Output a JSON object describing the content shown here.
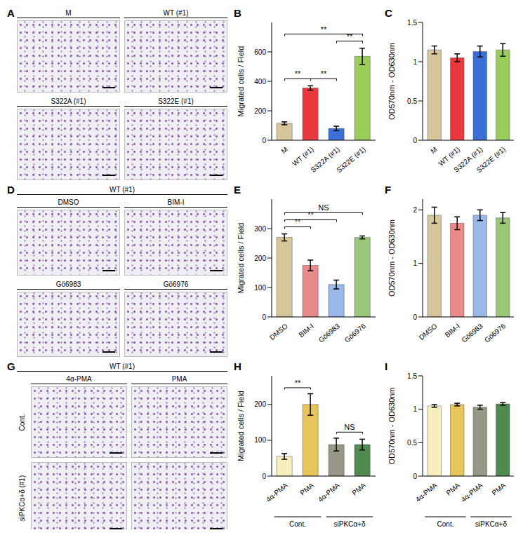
{
  "image_panels": [
    {
      "panel": "A",
      "tiles": [
        "M",
        "WT (#1)",
        "S322A (#1)",
        "S322E (#1)"
      ]
    },
    {
      "panel": "D",
      "header": "WT (#1)",
      "tiles": [
        "DMSO",
        "BIM-I",
        "Gö6983",
        "Gö6976"
      ]
    },
    {
      "panel": "G",
      "header": "WT (#1)",
      "columns": [
        "4α-PMA",
        "PMA"
      ],
      "rows": [
        "Cont.",
        "siPKCα+δ (#1)"
      ]
    }
  ],
  "chart_data": [
    {
      "panel": "B",
      "type": "bar",
      "ylabel": "Migrated cells / Field",
      "categories": [
        "M",
        "WT (#1)",
        "S322A (#1)",
        "S322E (#1)"
      ],
      "values": [
        115,
        355,
        80,
        570
      ],
      "errors": [
        10,
        15,
        15,
        55
      ],
      "colors": [
        "#d6c69a",
        "#e8383d",
        "#3a6fd8",
        "#9acd5a"
      ],
      "ylim": [
        0,
        800
      ],
      "yticks": [
        0,
        200,
        400,
        600
      ],
      "annotations": [
        {
          "from": 0,
          "to": 1,
          "label": "**"
        },
        {
          "from": 1,
          "to": 2,
          "label": "**"
        },
        {
          "from": 2,
          "to": 3,
          "label": "**"
        },
        {
          "from": 0,
          "to": 3,
          "label": "**"
        }
      ]
    },
    {
      "panel": "C",
      "type": "bar",
      "ylabel": "OD570nm - OD630nm",
      "categories": [
        "M",
        "WT (#1)",
        "S322A (#1)",
        "S322E (#1)"
      ],
      "values": [
        1.15,
        1.05,
        1.13,
        1.15
      ],
      "errors": [
        0.05,
        0.05,
        0.07,
        0.08
      ],
      "colors": [
        "#d6c69a",
        "#e8383d",
        "#3a6fd8",
        "#9acd5a"
      ],
      "ylim": [
        0,
        1.5
      ],
      "yticks": [
        0,
        0.5,
        1,
        1.5
      ]
    },
    {
      "panel": "E",
      "type": "bar",
      "ylabel": "Migrated cells / Field",
      "categories": [
        "DMSO",
        "BIM-I",
        "Gö6983",
        "Gö6976"
      ],
      "values": [
        270,
        175,
        110,
        270
      ],
      "errors": [
        12,
        18,
        15,
        5
      ],
      "colors": [
        "#d6c69a",
        "#e88a8a",
        "#9ab8e8",
        "#9ac77a"
      ],
      "ylim": [
        0,
        400
      ],
      "yticks": [
        0,
        100,
        200,
        300
      ],
      "annotations": [
        {
          "from": 0,
          "to": 1,
          "label": "**"
        },
        {
          "from": 0,
          "to": 2,
          "label": "**"
        },
        {
          "from": 0,
          "to": 3,
          "label": "NS"
        }
      ]
    },
    {
      "panel": "F",
      "type": "bar",
      "ylabel": "OD570nm - OD630nm",
      "categories": [
        "DMSO",
        "BIM-I",
        "Gö6983",
        "Gö6976"
      ],
      "values": [
        1.9,
        1.75,
        1.9,
        1.85
      ],
      "errors": [
        0.15,
        0.12,
        0.1,
        0.1
      ],
      "colors": [
        "#d6c69a",
        "#e88a8a",
        "#9ab8e8",
        "#9ac77a"
      ],
      "ylim": [
        0,
        2.2
      ],
      "yticks": [
        0,
        1,
        2
      ]
    },
    {
      "panel": "H",
      "type": "bar",
      "ylabel": "Migrated cells / Field",
      "categories": [
        "4α-PMA",
        "PMA",
        "4α-PMA",
        "PMA"
      ],
      "values": [
        55,
        200,
        88,
        88
      ],
      "errors": [
        8,
        30,
        18,
        15
      ],
      "colors": [
        "#f7eebb",
        "#e8c55a",
        "#999888",
        "#4f8a4f"
      ],
      "ylim": [
        0,
        280
      ],
      "yticks": [
        0,
        100,
        200
      ],
      "groups": [
        {
          "label": "Cont.",
          "from": 0,
          "to": 1
        },
        {
          "label": "siPKCα+δ",
          "from": 2,
          "to": 3
        }
      ],
      "annotations": [
        {
          "from": 0,
          "to": 1,
          "label": "**"
        },
        {
          "from": 2,
          "to": 3,
          "label": "NS"
        }
      ]
    },
    {
      "panel": "I",
      "type": "bar",
      "ylabel": "OD570nm - OD630nm",
      "categories": [
        "4α-PMA",
        "PMA",
        "4α-PMA",
        "PMA"
      ],
      "values": [
        1.05,
        1.07,
        1.03,
        1.08
      ],
      "errors": [
        0.02,
        0.02,
        0.03,
        0.02
      ],
      "colors": [
        "#f7eebb",
        "#e8c55a",
        "#999888",
        "#4f8a4f"
      ],
      "ylim": [
        0,
        1.5
      ],
      "yticks": [
        0,
        0.5,
        1,
        1.5
      ],
      "groups": [
        {
          "label": "Cont.",
          "from": 0,
          "to": 1
        },
        {
          "label": "siPKCα+δ",
          "from": 2,
          "to": 3
        }
      ]
    }
  ]
}
